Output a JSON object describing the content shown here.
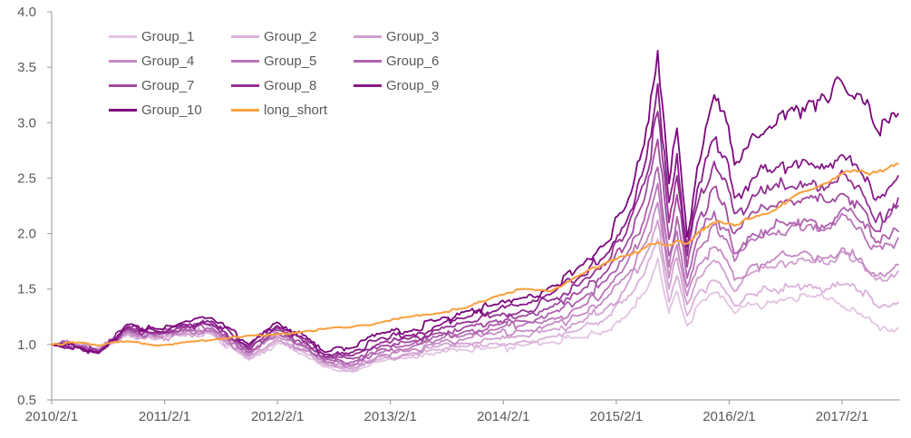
{
  "chart_data": {
    "type": "line",
    "title": "",
    "grid": false,
    "legend": {
      "position": "top-left-inside",
      "columns": 3
    },
    "style": {
      "axis_color": "#a6a6a6",
      "label_color": "#595959",
      "background": "#ffffff"
    },
    "x_axis": {
      "tick_labels": [
        "2010/2/1",
        "2011/2/1",
        "2012/2/1",
        "2013/2/1",
        "2014/2/1",
        "2015/2/1",
        "2016/2/1",
        "2017/2/1"
      ],
      "tick_positions_decimal_years": [
        2010.083,
        2011.083,
        2012.083,
        2013.083,
        2014.083,
        2015.083,
        2016.083,
        2017.083
      ],
      "range_decimal_years": [
        2010.083,
        2017.63
      ]
    },
    "y_axis": {
      "tick_labels": [
        "4.0",
        "3.5",
        "3.0",
        "2.5",
        "2.0",
        "1.5",
        "1.0",
        "0.5"
      ],
      "tick_values": [
        4.0,
        3.5,
        3.0,
        2.5,
        2.0,
        1.5,
        1.0,
        0.5
      ],
      "range": [
        0.5,
        4.0
      ]
    },
    "anchors_t": [
      2010.083,
      2010.33,
      2010.5,
      2010.75,
      2011.0,
      2011.25,
      2011.5,
      2011.83,
      2012.08,
      2012.33,
      2012.5,
      2012.75,
      2013.0,
      2013.25,
      2013.5,
      2013.75,
      2014.0,
      2014.25,
      2014.5,
      2014.75,
      2015.0,
      2015.17,
      2015.33,
      2015.45,
      2015.55,
      2015.62,
      2015.71,
      2015.8,
      2015.95,
      2016.04,
      2016.13,
      2016.29,
      2016.46,
      2016.62,
      2016.79,
      2016.96,
      2017.08,
      2017.25,
      2017.38,
      2017.5,
      2017.58
    ],
    "series": [
      {
        "name": "Group_1",
        "color": "#e3c4e2",
        "values": [
          1.0,
          1.0,
          0.97,
          1.08,
          1.04,
          1.08,
          1.09,
          0.86,
          1.01,
          0.9,
          0.8,
          0.75,
          0.85,
          0.88,
          0.93,
          0.95,
          0.97,
          0.99,
          1.02,
          1.06,
          1.12,
          1.25,
          1.46,
          1.78,
          1.28,
          1.48,
          1.17,
          1.35,
          1.47,
          1.42,
          1.28,
          1.36,
          1.38,
          1.42,
          1.44,
          1.4,
          1.34,
          1.28,
          1.18,
          1.12,
          1.15
        ]
      },
      {
        "name": "Group_2",
        "color": "#dab2da",
        "values": [
          1.0,
          1.0,
          0.96,
          1.09,
          1.05,
          1.09,
          1.1,
          0.87,
          1.03,
          0.92,
          0.81,
          0.76,
          0.87,
          0.9,
          0.95,
          0.98,
          1.01,
          1.03,
          1.07,
          1.13,
          1.24,
          1.4,
          1.63,
          1.95,
          1.38,
          1.62,
          1.26,
          1.45,
          1.58,
          1.5,
          1.35,
          1.45,
          1.48,
          1.52,
          1.54,
          1.5,
          1.54,
          1.48,
          1.36,
          1.34,
          1.38
        ]
      },
      {
        "name": "Group_3",
        "color": "#d0a0d0",
        "values": [
          1.0,
          0.99,
          0.96,
          1.1,
          1.06,
          1.1,
          1.11,
          0.89,
          1.05,
          0.94,
          0.83,
          0.78,
          0.89,
          0.92,
          0.98,
          1.01,
          1.05,
          1.08,
          1.13,
          1.2,
          1.33,
          1.52,
          1.78,
          2.12,
          1.5,
          1.78,
          1.36,
          1.6,
          1.76,
          1.66,
          1.48,
          1.65,
          1.7,
          1.74,
          1.76,
          1.72,
          1.84,
          1.74,
          1.58,
          1.6,
          1.66
        ]
      },
      {
        "name": "Group_4",
        "color": "#c58bc4",
        "values": [
          1.0,
          0.99,
          0.95,
          1.11,
          1.07,
          1.11,
          1.12,
          0.9,
          1.07,
          0.95,
          0.84,
          0.8,
          0.91,
          0.94,
          1.01,
          1.05,
          1.09,
          1.12,
          1.18,
          1.26,
          1.42,
          1.62,
          1.9,
          2.28,
          1.6,
          1.9,
          1.44,
          1.7,
          1.88,
          1.78,
          1.58,
          1.72,
          1.76,
          1.8,
          1.82,
          1.78,
          1.87,
          1.78,
          1.62,
          1.65,
          1.72
        ]
      },
      {
        "name": "Group_5",
        "color": "#ba76b9",
        "values": [
          1.0,
          0.99,
          0.95,
          1.12,
          1.08,
          1.12,
          1.13,
          0.92,
          1.09,
          0.97,
          0.85,
          0.82,
          0.93,
          0.96,
          1.04,
          1.09,
          1.13,
          1.17,
          1.23,
          1.33,
          1.5,
          1.72,
          2.02,
          2.45,
          1.7,
          2.02,
          1.52,
          1.85,
          2.08,
          1.95,
          1.75,
          1.95,
          2.0,
          2.05,
          2.08,
          2.05,
          2.18,
          2.05,
          1.88,
          1.9,
          1.96
        ]
      },
      {
        "name": "Group_6",
        "color": "#ae61ae",
        "values": [
          1.0,
          0.98,
          0.94,
          1.13,
          1.09,
          1.13,
          1.15,
          0.93,
          1.11,
          0.99,
          0.86,
          0.84,
          0.96,
          0.99,
          1.07,
          1.12,
          1.17,
          1.21,
          1.28,
          1.39,
          1.58,
          1.8,
          2.12,
          2.6,
          1.8,
          2.15,
          1.6,
          1.95,
          2.2,
          2.05,
          1.82,
          2.0,
          2.05,
          2.1,
          2.12,
          2.08,
          2.22,
          2.1,
          1.92,
          1.95,
          2.02
        ]
      },
      {
        "name": "Group_7",
        "color": "#a14aa1",
        "values": [
          1.0,
          0.98,
          0.94,
          1.14,
          1.1,
          1.15,
          1.17,
          0.95,
          1.13,
          1.01,
          0.88,
          0.87,
          0.99,
          1.02,
          1.1,
          1.16,
          1.21,
          1.26,
          1.34,
          1.46,
          1.66,
          1.9,
          2.3,
          2.85,
          1.95,
          2.35,
          1.7,
          2.1,
          2.42,
          2.28,
          2.0,
          2.2,
          2.25,
          2.3,
          2.32,
          2.28,
          2.36,
          2.25,
          2.02,
          2.15,
          2.25
        ]
      },
      {
        "name": "Group_8",
        "color": "#933193",
        "values": [
          1.0,
          0.98,
          0.93,
          1.15,
          1.11,
          1.16,
          1.19,
          0.96,
          1.15,
          1.03,
          0.89,
          0.9,
          1.02,
          1.05,
          1.13,
          1.2,
          1.26,
          1.31,
          1.4,
          1.53,
          1.74,
          2.0,
          2.45,
          3.1,
          2.1,
          2.52,
          1.8,
          2.25,
          2.65,
          2.5,
          2.18,
          2.35,
          2.4,
          2.42,
          2.45,
          2.42,
          2.57,
          2.4,
          2.1,
          2.22,
          2.32
        ]
      },
      {
        "name": "Group_9",
        "color": "#871a88",
        "values": [
          1.0,
          0.97,
          0.93,
          1.16,
          1.12,
          1.18,
          1.21,
          0.98,
          1.17,
          1.05,
          0.91,
          0.93,
          1.06,
          1.08,
          1.17,
          1.24,
          1.3,
          1.36,
          1.45,
          1.6,
          1.82,
          2.1,
          2.6,
          3.35,
          2.28,
          2.72,
          1.88,
          2.4,
          2.85,
          2.7,
          2.32,
          2.5,
          2.55,
          2.6,
          2.62,
          2.6,
          2.71,
          2.55,
          2.3,
          2.42,
          2.52
        ]
      },
      {
        "name": "Group_10",
        "color": "#7a077c",
        "values": [
          1.0,
          0.97,
          0.92,
          1.18,
          1.14,
          1.2,
          1.24,
          1.0,
          1.2,
          1.08,
          0.93,
          0.97,
          1.1,
          1.12,
          1.22,
          1.3,
          1.36,
          1.42,
          1.52,
          1.7,
          1.92,
          2.25,
          2.8,
          3.65,
          2.45,
          2.95,
          1.97,
          2.6,
          3.25,
          3.1,
          2.62,
          2.9,
          2.95,
          3.12,
          3.2,
          3.18,
          3.37,
          3.25,
          2.95,
          3.0,
          3.08
        ]
      },
      {
        "name": "long_short",
        "color": "#f9a242",
        "values": [
          1.0,
          1.02,
          0.99,
          1.03,
          0.99,
          1.02,
          1.04,
          1.08,
          1.09,
          1.12,
          1.14,
          1.16,
          1.2,
          1.25,
          1.28,
          1.33,
          1.43,
          1.5,
          1.48,
          1.62,
          1.74,
          1.8,
          1.87,
          1.92,
          1.9,
          1.94,
          1.91,
          2.0,
          2.1,
          2.09,
          2.07,
          2.14,
          2.2,
          2.31,
          2.39,
          2.46,
          2.54,
          2.57,
          2.55,
          2.6,
          2.63
        ]
      }
    ]
  }
}
